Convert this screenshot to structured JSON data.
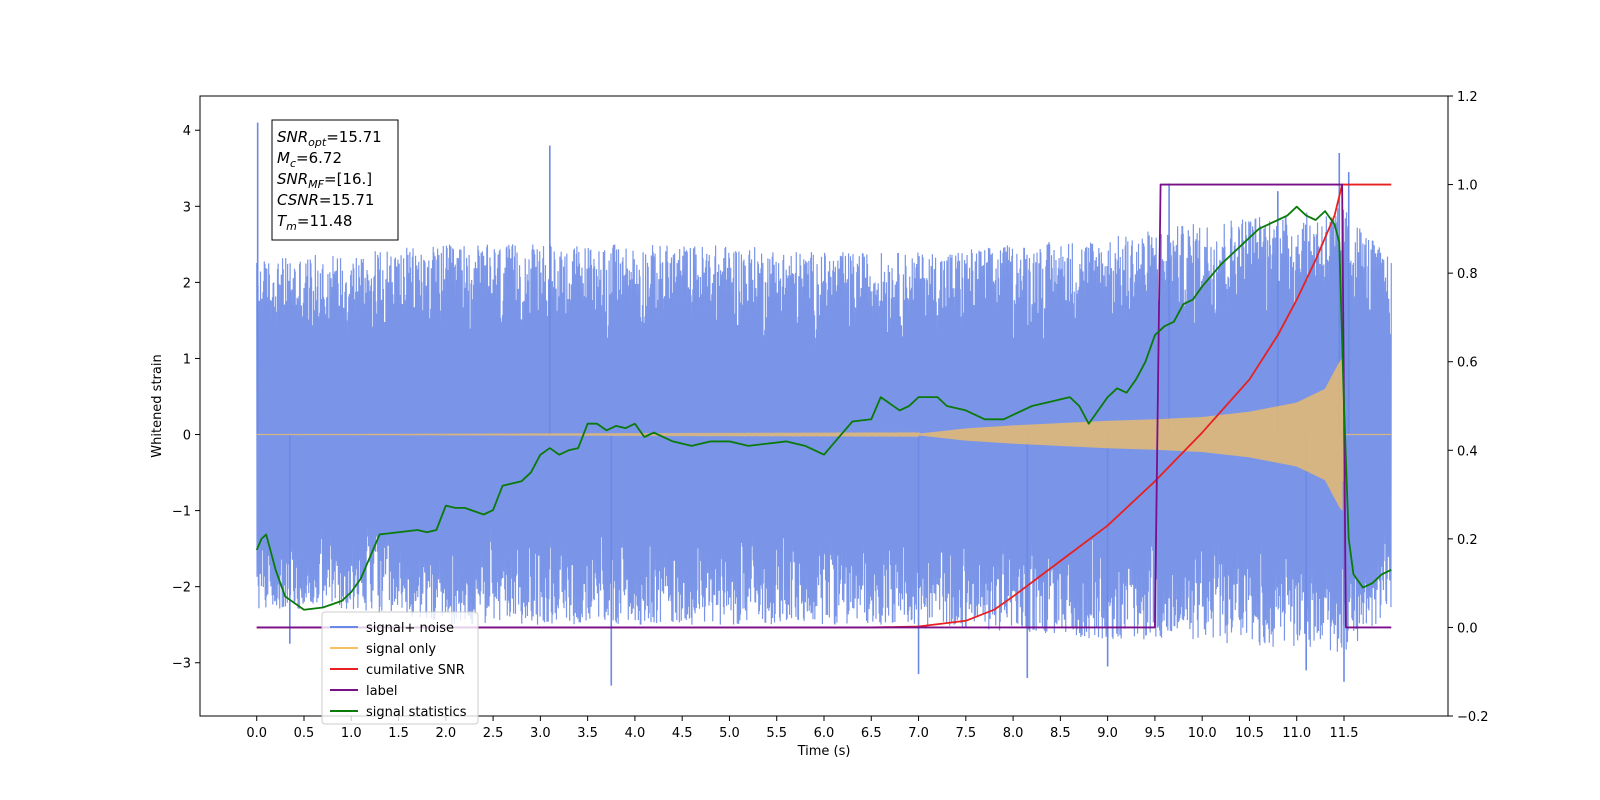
{
  "chart_data": {
    "type": "line",
    "xlabel": "Time (s)",
    "ylabel_left": "Whitened strain",
    "xlim": [
      -0.6,
      12.6
    ],
    "ylim_left": [
      -3.7,
      4.45
    ],
    "ylim_right": [
      -0.2,
      1.2
    ],
    "x_ticks": [
      0.0,
      0.5,
      1.0,
      1.5,
      2.0,
      2.5,
      3.0,
      3.5,
      4.0,
      4.5,
      5.0,
      5.5,
      6.0,
      6.5,
      7.0,
      7.5,
      8.0,
      8.5,
      9.0,
      9.5,
      10.0,
      10.5,
      11.0,
      11.5
    ],
    "x_tick_labels": [
      "0.0",
      "0.5",
      "1.0",
      "1.5",
      "2.0",
      "2.5",
      "3.0",
      "3.5",
      "4.0",
      "4.5",
      "5.0",
      "5.5",
      "6.0",
      "6.5",
      "7.0",
      "7.5",
      "8.0",
      "8.5",
      "9.0",
      "9.5",
      "10.0",
      "10.5",
      "11.0",
      "11.5"
    ],
    "y_left_ticks": [
      -3,
      -2,
      -1,
      0,
      1,
      2,
      3,
      4
    ],
    "y_left_tick_labels": [
      "−3",
      "−2",
      "−1",
      "0",
      "1",
      "2",
      "3",
      "4"
    ],
    "y_right_ticks": [
      -0.2,
      0.0,
      0.2,
      0.4,
      0.6,
      0.8,
      1.0,
      1.2
    ],
    "y_right_tick_labels": [
      "−0.2",
      "0.0",
      "0.2",
      "0.4",
      "0.6",
      "0.8",
      "1.0",
      "1.2"
    ],
    "legend_placement": "lower-left",
    "annotation": {
      "lines": [
        {
          "base": "SNR",
          "sub": "opt",
          "value": "=15.71"
        },
        {
          "base": "M",
          "sub": "c",
          "value": "=6.72"
        },
        {
          "base": "SNR",
          "sub": "MF",
          "value": "=[16.]"
        },
        {
          "base": "CSNR",
          "sub": "",
          "value": "=15.71"
        },
        {
          "base": "T",
          "sub": "m",
          "value": "=11.48"
        }
      ]
    },
    "series": [
      {
        "name": "signal+ noise",
        "color": "#6b8ae6",
        "axis": "left",
        "description": "noise band",
        "x_range": [
          0.0,
          12.0
        ],
        "envelope_upper_x": [
          0.0,
          1.0,
          2.0,
          3.0,
          4.0,
          5.0,
          6.0,
          7.0,
          8.0,
          9.0,
          9.5,
          10.0,
          10.5,
          11.0,
          11.5,
          12.0
        ],
        "envelope_upper_y": [
          2.3,
          2.4,
          2.5,
          2.5,
          2.5,
          2.5,
          2.4,
          2.4,
          2.5,
          2.6,
          2.7,
          2.8,
          2.9,
          2.9,
          3.0,
          2.3
        ],
        "envelope_lower_y": [
          -2.3,
          -2.3,
          -2.5,
          -2.5,
          -2.5,
          -2.5,
          -2.5,
          -2.5,
          -2.6,
          -2.7,
          -2.7,
          -2.7,
          -2.8,
          -2.8,
          -2.9,
          -2.3
        ],
        "spikes": [
          [
            0.01,
            4.1
          ],
          [
            3.1,
            3.8
          ],
          [
            11.45,
            3.7
          ],
          [
            11.55,
            3.45
          ],
          [
            9.65,
            3.3
          ],
          [
            10.8,
            3.2
          ],
          [
            3.75,
            -3.3
          ],
          [
            7.0,
            -3.15
          ],
          [
            9.0,
            -3.05
          ],
          [
            11.1,
            -3.1
          ],
          [
            11.5,
            -3.25
          ],
          [
            0.35,
            -2.75
          ],
          [
            8.15,
            -3.2
          ]
        ]
      },
      {
        "name": "signal only",
        "color": "#f5c060",
        "axis": "left",
        "description": "chirp",
        "amplitude_x": [
          0.0,
          7.0,
          7.5,
          8.0,
          8.5,
          9.0,
          9.5,
          10.0,
          10.5,
          11.0,
          11.3,
          11.45,
          11.48,
          11.5,
          12.0
        ],
        "amplitude_y": [
          0.0,
          0.01,
          0.08,
          0.12,
          0.15,
          0.18,
          0.2,
          0.23,
          0.3,
          0.42,
          0.6,
          0.95,
          1.0,
          0.0,
          0.0
        ]
      },
      {
        "name": "cumilative SNR",
        "color": "#e82020",
        "axis": "right",
        "x": [
          0.0,
          6.5,
          7.0,
          7.5,
          7.8,
          8.0,
          8.5,
          9.0,
          9.5,
          10.0,
          10.5,
          10.8,
          11.0,
          11.2,
          11.4,
          11.48,
          11.5,
          12.0
        ],
        "y": [
          0.0,
          0.0,
          0.002,
          0.015,
          0.04,
          0.07,
          0.15,
          0.23,
          0.33,
          0.44,
          0.56,
          0.66,
          0.74,
          0.83,
          0.93,
          1.0,
          1.0,
          1.0
        ]
      },
      {
        "name": "label",
        "color": "#7a0f8a",
        "axis": "right",
        "x": [
          0.0,
          9.5,
          9.56,
          11.48,
          11.52,
          12.0
        ],
        "y": [
          0.0,
          0.0,
          1.0,
          1.0,
          0.0,
          0.0
        ]
      },
      {
        "name": "signal statistics",
        "color": "#0a7a0a",
        "axis": "right",
        "x": [
          0.0,
          0.05,
          0.1,
          0.2,
          0.3,
          0.5,
          0.7,
          0.9,
          1.0,
          1.1,
          1.2,
          1.3,
          1.5,
          1.7,
          1.8,
          1.9,
          2.0,
          2.1,
          2.2,
          2.4,
          2.5,
          2.6,
          2.8,
          2.9,
          3.0,
          3.1,
          3.2,
          3.3,
          3.4,
          3.5,
          3.6,
          3.7,
          3.8,
          3.9,
          4.0,
          4.1,
          4.2,
          4.4,
          4.6,
          4.8,
          5.0,
          5.2,
          5.4,
          5.6,
          5.8,
          6.0,
          6.2,
          6.3,
          6.5,
          6.6,
          6.8,
          6.9,
          7.0,
          7.2,
          7.3,
          7.5,
          7.7,
          7.9,
          8.0,
          8.2,
          8.4,
          8.6,
          8.7,
          8.8,
          9.0,
          9.1,
          9.2,
          9.3,
          9.4,
          9.5,
          9.6,
          9.7,
          9.8,
          9.9,
          10.0,
          10.2,
          10.4,
          10.5,
          10.6,
          10.8,
          10.9,
          11.0,
          11.1,
          11.2,
          11.3,
          11.4,
          11.45,
          11.5,
          11.55,
          11.6,
          11.7,
          11.8,
          11.9,
          12.0
        ],
        "y": [
          0.175,
          0.2,
          0.21,
          0.13,
          0.07,
          0.04,
          0.045,
          0.06,
          0.08,
          0.11,
          0.16,
          0.21,
          0.215,
          0.22,
          0.215,
          0.22,
          0.275,
          0.27,
          0.27,
          0.255,
          0.265,
          0.32,
          0.33,
          0.35,
          0.39,
          0.405,
          0.39,
          0.4,
          0.405,
          0.46,
          0.46,
          0.445,
          0.455,
          0.45,
          0.46,
          0.43,
          0.44,
          0.42,
          0.41,
          0.42,
          0.42,
          0.41,
          0.415,
          0.42,
          0.41,
          0.39,
          0.44,
          0.465,
          0.47,
          0.52,
          0.49,
          0.5,
          0.52,
          0.52,
          0.5,
          0.49,
          0.47,
          0.47,
          0.48,
          0.5,
          0.51,
          0.52,
          0.5,
          0.46,
          0.52,
          0.54,
          0.53,
          0.56,
          0.6,
          0.66,
          0.68,
          0.69,
          0.73,
          0.74,
          0.77,
          0.82,
          0.86,
          0.88,
          0.9,
          0.92,
          0.93,
          0.95,
          0.93,
          0.92,
          0.94,
          0.91,
          0.87,
          0.5,
          0.2,
          0.12,
          0.09,
          0.1,
          0.12,
          0.13
        ]
      }
    ]
  }
}
